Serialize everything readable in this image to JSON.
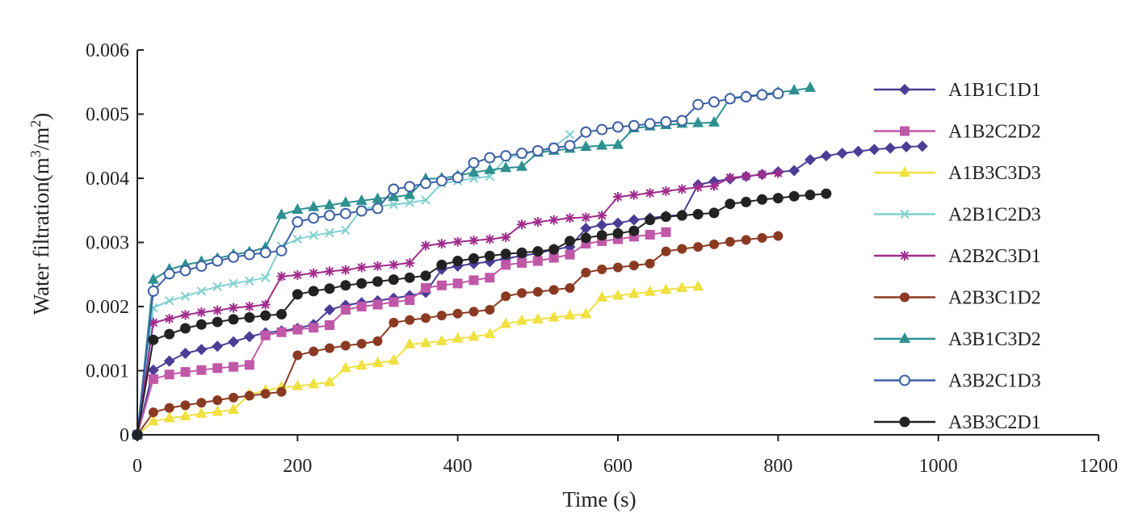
{
  "chart_data": {
    "type": "line",
    "title": "",
    "xlabel": "Time (s)",
    "ylabel": "Water filtration(m",
    "ylabel_sup1": "3",
    "ylabel_mid": "/m",
    "ylabel_sup2": "2",
    "ylabel_end": ")",
    "xlim": [
      0,
      1200
    ],
    "ylim": [
      0,
      0.006
    ],
    "xticks": [
      0,
      200,
      400,
      600,
      800,
      1000,
      1200
    ],
    "yticks": [
      0,
      0.001,
      0.002,
      0.003,
      0.004,
      0.005,
      0.006
    ],
    "xtick_labels": [
      "0",
      "200",
      "400",
      "600",
      "800",
      "1000",
      "1200"
    ],
    "ytick_labels": [
      "0",
      "0.001",
      "0.002",
      "0.003",
      "0.004",
      "0.005",
      "0.006"
    ],
    "grid": false,
    "legend_position": "right",
    "series": [
      {
        "name": "A1B1C1D1",
        "color": "#4b3d96",
        "marker": "diamond",
        "x": [
          0,
          20,
          40,
          60,
          80,
          100,
          120,
          140,
          160,
          180,
          200,
          220,
          240,
          260,
          280,
          300,
          320,
          340,
          360,
          380,
          400,
          420,
          440,
          460,
          480,
          500,
          520,
          540,
          560,
          580,
          600,
          620,
          640,
          660,
          680,
          700,
          720,
          740,
          760,
          780,
          800,
          820,
          840,
          860,
          880,
          900,
          920,
          940,
          960,
          980
        ],
        "y": [
          0,
          0.00101,
          0.00115,
          0.00127,
          0.00133,
          0.00138,
          0.00145,
          0.00153,
          0.00159,
          0.00162,
          0.00166,
          0.00172,
          0.00195,
          0.00202,
          0.00206,
          0.00209,
          0.00213,
          0.00217,
          0.00222,
          0.00258,
          0.00263,
          0.00267,
          0.0027,
          0.00275,
          0.00279,
          0.00283,
          0.00289,
          0.00293,
          0.00322,
          0.00327,
          0.0033,
          0.00335,
          0.00338,
          0.00341,
          0.00343,
          0.0039,
          0.00395,
          0.00399,
          0.00403,
          0.00406,
          0.0041,
          0.00412,
          0.00429,
          0.00435,
          0.00439,
          0.00442,
          0.00445,
          0.00447,
          0.00449,
          0.0045
        ]
      },
      {
        "name": "A1B2C2D2",
        "color": "#c058a8",
        "marker": "square",
        "x": [
          0,
          20,
          40,
          60,
          80,
          100,
          120,
          140,
          160,
          180,
          200,
          220,
          240,
          260,
          280,
          300,
          320,
          340,
          360,
          380,
          400,
          420,
          440,
          460,
          480,
          500,
          520,
          540,
          560,
          580,
          600,
          620,
          640,
          660
        ],
        "y": [
          0,
          0.00087,
          0.00094,
          0.00098,
          0.00101,
          0.00104,
          0.00106,
          0.00109,
          0.00155,
          0.0016,
          0.00164,
          0.00167,
          0.00171,
          0.00195,
          0.002,
          0.00203,
          0.00207,
          0.0021,
          0.00229,
          0.00233,
          0.00236,
          0.00241,
          0.00245,
          0.00265,
          0.00268,
          0.00271,
          0.00276,
          0.00281,
          0.00298,
          0.00302,
          0.00305,
          0.00309,
          0.00312,
          0.00316
        ]
      },
      {
        "name": "A1B3C3D3",
        "color": "#f0e040",
        "marker": "triangle",
        "x": [
          0,
          20,
          40,
          60,
          80,
          100,
          120,
          140,
          160,
          180,
          200,
          220,
          240,
          260,
          280,
          300,
          320,
          340,
          360,
          380,
          400,
          420,
          440,
          460,
          480,
          500,
          520,
          540,
          560,
          580,
          600,
          620,
          640,
          660,
          680,
          700
        ],
        "y": [
          0,
          0.00021,
          0.00026,
          0.00029,
          0.00033,
          0.00036,
          0.00039,
          0.00063,
          0.00069,
          0.00074,
          0.00076,
          0.00079,
          0.00082,
          0.00104,
          0.00108,
          0.00112,
          0.00116,
          0.00141,
          0.00143,
          0.00146,
          0.0015,
          0.00153,
          0.00157,
          0.00173,
          0.00178,
          0.0018,
          0.00183,
          0.00186,
          0.00188,
          0.00214,
          0.00217,
          0.0022,
          0.00223,
          0.00226,
          0.00229,
          0.00231
        ]
      },
      {
        "name": "A2B1C2D3",
        "color": "#80d0d0",
        "marker": "x",
        "x": [
          0,
          20,
          40,
          60,
          80,
          100,
          120,
          140,
          160,
          180,
          200,
          220,
          240,
          260,
          280,
          300,
          320,
          340,
          360,
          380,
          400,
          420,
          440,
          460,
          480,
          500,
          520,
          540
        ],
        "y": [
          0,
          0.00198,
          0.00209,
          0.00216,
          0.00224,
          0.00231,
          0.00236,
          0.0024,
          0.00245,
          0.00294,
          0.00305,
          0.00311,
          0.00315,
          0.00319,
          0.00352,
          0.00356,
          0.00359,
          0.00362,
          0.00366,
          0.00392,
          0.00396,
          0.004,
          0.00403,
          0.00431,
          0.00437,
          0.00443,
          0.00449,
          0.00468
        ]
      },
      {
        "name": "A2B2C3D1",
        "color": "#a02d8c",
        "marker": "star",
        "x": [
          0,
          20,
          40,
          60,
          80,
          100,
          120,
          140,
          160,
          180,
          200,
          220,
          240,
          260,
          280,
          300,
          320,
          340,
          360,
          380,
          400,
          420,
          440,
          460,
          480,
          500,
          520,
          540,
          560,
          580,
          600,
          620,
          640,
          660,
          680,
          700,
          720,
          740,
          760,
          780,
          800
        ],
        "y": [
          0,
          0.00175,
          0.00181,
          0.00187,
          0.00191,
          0.00194,
          0.00198,
          0.002,
          0.00203,
          0.00247,
          0.00249,
          0.00252,
          0.00255,
          0.00257,
          0.00261,
          0.00263,
          0.00265,
          0.00268,
          0.00295,
          0.00298,
          0.00301,
          0.00303,
          0.00305,
          0.00308,
          0.00328,
          0.00332,
          0.00335,
          0.00338,
          0.00339,
          0.00342,
          0.00371,
          0.00374,
          0.00377,
          0.0038,
          0.00383,
          0.00386,
          0.00388,
          0.00401,
          0.00403,
          0.00406,
          0.00408
        ]
      },
      {
        "name": "A2B3C1D2",
        "color": "#8b3a22",
        "marker": "circle",
        "x": [
          0,
          20,
          40,
          60,
          80,
          100,
          120,
          140,
          160,
          180,
          200,
          220,
          240,
          260,
          280,
          300,
          320,
          340,
          360,
          380,
          400,
          420,
          440,
          460,
          480,
          500,
          520,
          540,
          560,
          580,
          600,
          620,
          640,
          660,
          680,
          700,
          720,
          740,
          760,
          780,
          800
        ],
        "y": [
          0,
          0.00035,
          0.00042,
          0.00046,
          0.0005,
          0.00054,
          0.00058,
          0.00061,
          0.00064,
          0.00067,
          0.00124,
          0.0013,
          0.00135,
          0.00139,
          0.00142,
          0.00146,
          0.00175,
          0.00179,
          0.00182,
          0.00186,
          0.00189,
          0.00192,
          0.00195,
          0.00216,
          0.00221,
          0.00223,
          0.00226,
          0.00229,
          0.00253,
          0.00258,
          0.00261,
          0.00264,
          0.00267,
          0.00286,
          0.0029,
          0.00293,
          0.00297,
          0.00301,
          0.00304,
          0.00307,
          0.0031
        ]
      },
      {
        "name": "A3B1C3D2",
        "color": "#2e9090",
        "marker": "triangle",
        "x": [
          0,
          20,
          40,
          60,
          80,
          100,
          120,
          140,
          160,
          180,
          200,
          220,
          240,
          260,
          280,
          300,
          320,
          340,
          360,
          380,
          400,
          420,
          440,
          460,
          480,
          500,
          520,
          540,
          560,
          580,
          600,
          620,
          640,
          660,
          680,
          700,
          720,
          740,
          760,
          780,
          800,
          820,
          840
        ],
        "y": [
          0,
          0.00242,
          0.00258,
          0.00265,
          0.0027,
          0.00275,
          0.00281,
          0.00285,
          0.00292,
          0.00343,
          0.00351,
          0.00355,
          0.00358,
          0.00362,
          0.00365,
          0.00368,
          0.00371,
          0.00374,
          0.00399,
          0.004,
          0.00404,
          0.00409,
          0.00413,
          0.00416,
          0.00418,
          0.0044,
          0.00443,
          0.00446,
          0.00449,
          0.00451,
          0.00452,
          0.00478,
          0.00481,
          0.00483,
          0.00485,
          0.00486,
          0.00487,
          0.00525,
          0.00528,
          0.00531,
          0.00534,
          0.00537,
          0.00541
        ]
      },
      {
        "name": "A3B2C1D3",
        "color": "#3b5fa8",
        "marker": "open-circle",
        "x": [
          0,
          20,
          40,
          60,
          80,
          100,
          120,
          140,
          160,
          180,
          200,
          220,
          240,
          260,
          280,
          300,
          320,
          340,
          360,
          380,
          400,
          420,
          440,
          460,
          480,
          500,
          520,
          540,
          560,
          580,
          600,
          620,
          640,
          660,
          680,
          700,
          720,
          740,
          760,
          780,
          800
        ],
        "y": [
          0,
          0.00224,
          0.00251,
          0.00256,
          0.00263,
          0.00271,
          0.00277,
          0.00281,
          0.00284,
          0.00287,
          0.00332,
          0.00338,
          0.00342,
          0.00345,
          0.00349,
          0.00353,
          0.00383,
          0.00387,
          0.00392,
          0.00396,
          0.00401,
          0.00424,
          0.00432,
          0.00435,
          0.00439,
          0.00443,
          0.00447,
          0.00451,
          0.00472,
          0.00476,
          0.0048,
          0.00482,
          0.00485,
          0.00488,
          0.0049,
          0.00515,
          0.00519,
          0.00524,
          0.00527,
          0.0053,
          0.00532
        ]
      },
      {
        "name": "A3B3C2D1",
        "color": "#222222",
        "marker": "filled-circle",
        "x": [
          0,
          20,
          40,
          60,
          80,
          100,
          120,
          140,
          160,
          180,
          200,
          220,
          240,
          260,
          280,
          300,
          320,
          340,
          360,
          380,
          400,
          420,
          440,
          460,
          480,
          500,
          520,
          540,
          560,
          580,
          600,
          620,
          640,
          660,
          680,
          700,
          720,
          740,
          760,
          780,
          800,
          820,
          840,
          860
        ],
        "y": [
          0,
          0.00148,
          0.00157,
          0.00166,
          0.00172,
          0.00176,
          0.0018,
          0.00183,
          0.00186,
          0.00188,
          0.00219,
          0.00224,
          0.00228,
          0.00233,
          0.00236,
          0.00239,
          0.00242,
          0.00245,
          0.00248,
          0.00265,
          0.00271,
          0.00275,
          0.00279,
          0.00282,
          0.00284,
          0.00286,
          0.00289,
          0.00302,
          0.00307,
          0.00311,
          0.00314,
          0.00318,
          0.00335,
          0.0034,
          0.00342,
          0.00344,
          0.00346,
          0.0036,
          0.00363,
          0.00367,
          0.00369,
          0.00372,
          0.00374,
          0.00376
        ]
      }
    ]
  }
}
